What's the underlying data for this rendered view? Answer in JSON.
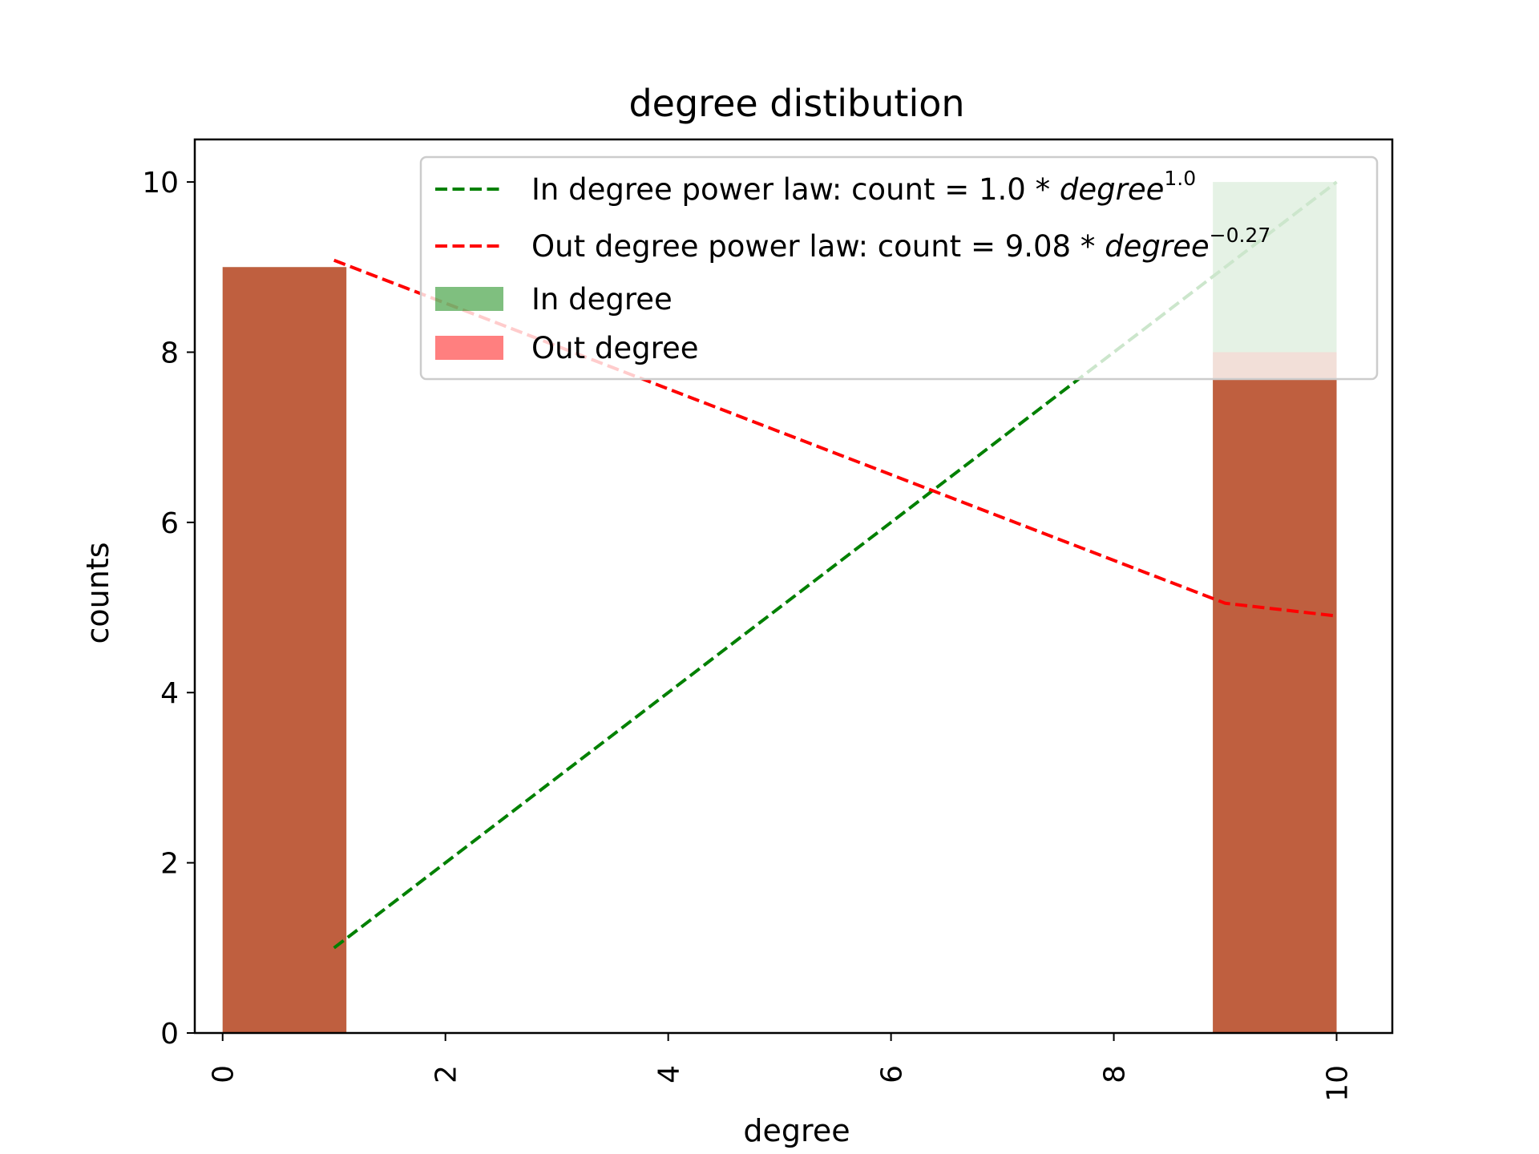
{
  "chart_data": {
    "type": "bar",
    "title": "degree distibution",
    "xlabel": "degree",
    "ylabel": "counts",
    "xlim": [
      -0.25,
      10.5
    ],
    "ylim": [
      0,
      10.5
    ],
    "x_ticks": [
      0,
      2,
      4,
      6,
      8,
      10
    ],
    "x_tick_labels": [
      "0",
      "2",
      "4",
      "6",
      "8",
      "10"
    ],
    "y_ticks": [
      0,
      2,
      4,
      6,
      8,
      10
    ],
    "y_tick_labels": [
      "0",
      "2",
      "4",
      "6",
      "8",
      "10"
    ],
    "grid": false,
    "legend_position": "upper-right",
    "bar_series": [
      {
        "name": "In degree",
        "color": "#008000",
        "opacity": 0.5,
        "bins": [
          {
            "x0": 0,
            "x1": 1.111,
            "value": 9
          },
          {
            "x0": 8.889,
            "x1": 10,
            "value": 10
          }
        ]
      },
      {
        "name": "Out degree",
        "color": "#ff0000",
        "opacity": 0.5,
        "bins": [
          {
            "x0": 0,
            "x1": 1.111,
            "value": 9
          },
          {
            "x0": 8.889,
            "x1": 10,
            "value": 8
          }
        ]
      }
    ],
    "line_series": [
      {
        "name_prefix": "In degree power law: count = 1.0",
        "name_base": "degree",
        "name_exp": "1.0",
        "color": "#008000",
        "dashed": true,
        "x": [
          1,
          10
        ],
        "y": [
          1.0,
          10.0
        ]
      },
      {
        "name_prefix": "Out degree power law: count = 9.08",
        "name_base": "degree",
        "name_exp": "−0.27",
        "color": "#ff0000",
        "dashed": true,
        "x": [
          1,
          9,
          10
        ],
        "y": [
          9.08,
          5.05,
          4.9
        ]
      }
    ]
  }
}
